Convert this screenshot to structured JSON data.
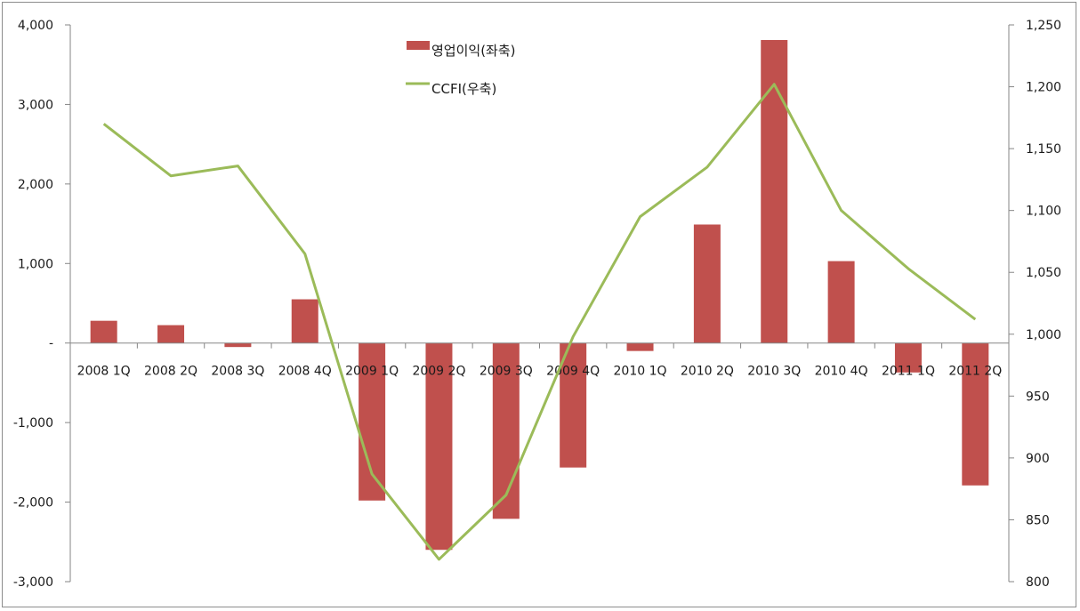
{
  "chart_data": {
    "type": "bar+line",
    "title": "",
    "categories": [
      "2008 1Q",
      "2008 2Q",
      "2008 3Q",
      "2008 4Q",
      "2009 1Q",
      "2009 2Q",
      "2009 3Q",
      "2009 4Q",
      "2010 1Q",
      "2010 2Q",
      "2010 3Q",
      "2010 4Q",
      "2011 1Q",
      "2011 2Q"
    ],
    "series": [
      {
        "name": "영업이익(좌축)",
        "type": "bar",
        "axis": "left",
        "color": "#c0504d",
        "values": [
          280,
          225,
          -50,
          550,
          -1980,
          -2600,
          -2210,
          -1565,
          -100,
          1490,
          3810,
          1030,
          -370,
          -1790
        ]
      },
      {
        "name": "CCFI(우축)",
        "type": "line",
        "axis": "right",
        "color": "#9bbb59",
        "values": [
          1170,
          1128,
          1136,
          1065,
          887,
          818,
          870,
          998,
          1095,
          1135,
          1202,
          1100,
          1053,
          1012
        ]
      }
    ],
    "left_axis": {
      "range": [
        -3000,
        4000
      ],
      "ticks": [
        4000,
        3000,
        2000,
        1000,
        0,
        -1000,
        -2000,
        -3000
      ],
      "tick_labels": [
        "4,000",
        "3,000",
        "2,000",
        "1,000",
        "-",
        "-1,000",
        "-2,000",
        "-3,000"
      ]
    },
    "right_axis": {
      "range": [
        800,
        1250
      ],
      "ticks": [
        1250,
        1200,
        1150,
        1100,
        1050,
        1000,
        950,
        900,
        850,
        800
      ],
      "tick_labels": [
        "1,250",
        "1,200",
        "1,150",
        "1,100",
        "1,050",
        "1,000",
        "950",
        "900",
        "850",
        "800"
      ]
    },
    "xlabel": "",
    "ylabel_left": "",
    "ylabel_right": "",
    "grid": false,
    "legend_position": "top-center-inside"
  },
  "legend": {
    "items": [
      {
        "label": "영업이익(좌축)",
        "kind": "bar",
        "color": "#c0504d"
      },
      {
        "label": "CCFI(우축)",
        "kind": "line",
        "color": "#9bbb59"
      }
    ]
  }
}
